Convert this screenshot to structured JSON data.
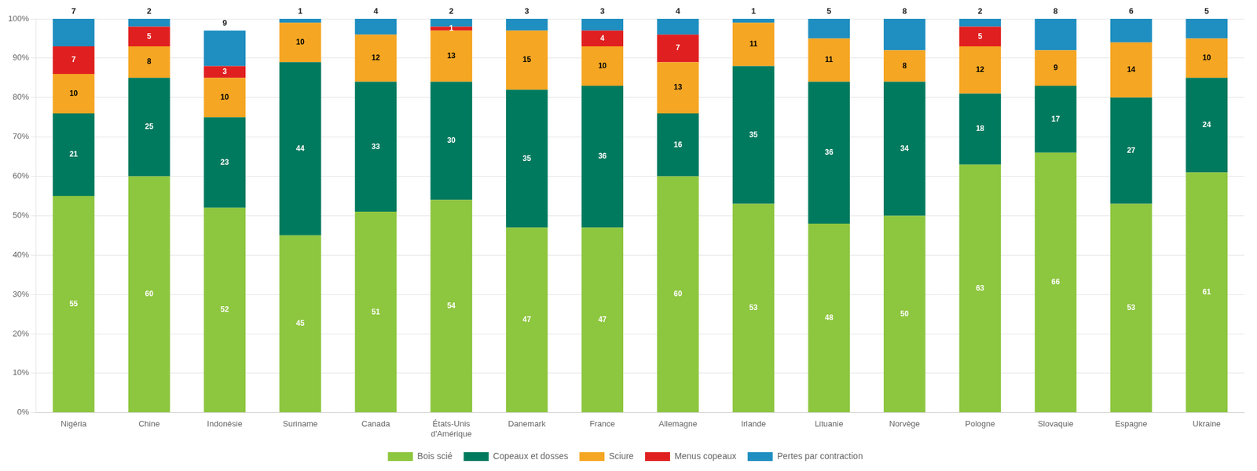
{
  "chart_data": {
    "type": "bar",
    "stacked": true,
    "categories": [
      "Nigéria",
      "Chine",
      "Indonésie",
      "Suriname",
      "Canada",
      "États-Unis\nd'Amérique",
      "Danemark",
      "France",
      "Allemagne",
      "Irlande",
      "Lituanie",
      "Norvège",
      "Pologne",
      "Slovaquie",
      "Espagne",
      "Ukraine"
    ],
    "series": [
      {
        "name": "Bois scié",
        "color": "#8dc63f",
        "values": [
          55,
          60,
          52,
          45,
          51,
          54,
          47,
          47,
          60,
          53,
          48,
          50,
          63,
          66,
          53,
          61
        ]
      },
      {
        "name": "Copeaux et dosses",
        "color": "#007a5e",
        "values": [
          21,
          25,
          23,
          44,
          33,
          30,
          35,
          36,
          16,
          35,
          36,
          34,
          18,
          17,
          27,
          24
        ]
      },
      {
        "name": "Sciure",
        "color": "#f5a623",
        "values": [
          10,
          8,
          10,
          10,
          12,
          13,
          15,
          10,
          13,
          11,
          11,
          8,
          12,
          9,
          14,
          10
        ]
      },
      {
        "name": "Menus copeaux",
        "color": "#e02020",
        "values": [
          7,
          5,
          3,
          0,
          0,
          1,
          0,
          4,
          7,
          0,
          0,
          0,
          5,
          0,
          0,
          0
        ]
      },
      {
        "name": "Pertes par contraction",
        "color": "#1f8ec0",
        "values": [
          7,
          2,
          9,
          1,
          4,
          2,
          3,
          3,
          4,
          1,
          5,
          8,
          2,
          8,
          6,
          5
        ]
      }
    ],
    "ylim": [
      0,
      100
    ],
    "yticks": [
      {
        "value": 0,
        "label": "0%"
      },
      {
        "value": 10,
        "label": "10%"
      },
      {
        "value": 20,
        "label": "20%"
      },
      {
        "value": 30,
        "label": "30%"
      },
      {
        "value": 40,
        "label": "40%"
      },
      {
        "value": 50,
        "label": "50%"
      },
      {
        "value": 60,
        "label": "60%"
      },
      {
        "value": 70,
        "label": "70%"
      },
      {
        "value": 80,
        "label": "80%"
      },
      {
        "value": 90,
        "label": "90%"
      },
      {
        "value": 100,
        "label": "100%"
      }
    ],
    "grid": true,
    "legend": "bottom",
    "data_labels": true
  }
}
